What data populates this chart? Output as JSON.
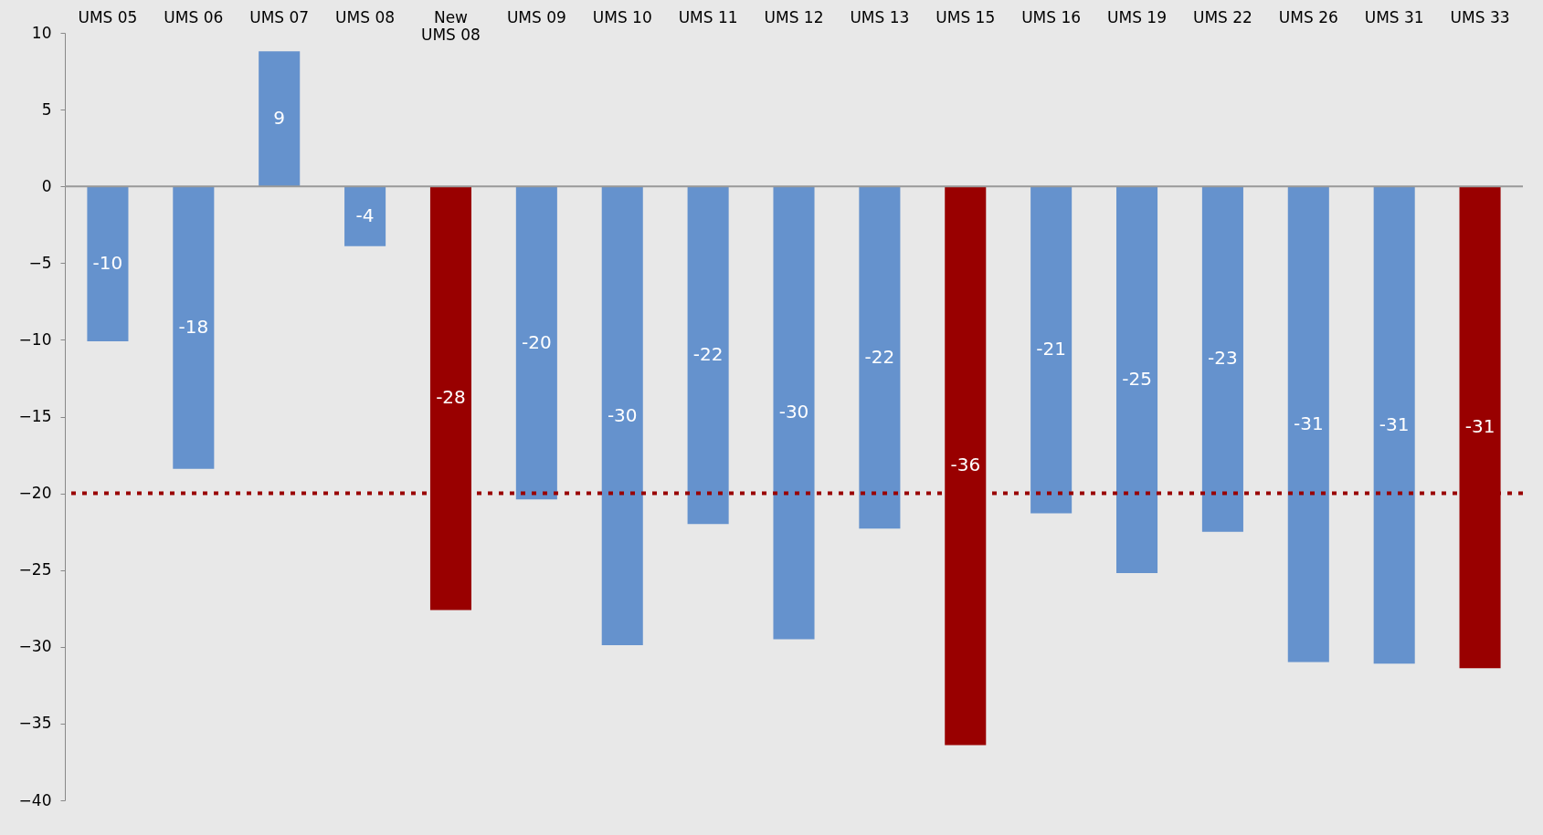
{
  "chart_data": {
    "type": "bar",
    "categories": [
      "UMS 05",
      "UMS 06",
      "UMS 07",
      "UMS 08",
      "New\nUMS 08",
      "UMS 09",
      "UMS 10",
      "UMS 11",
      "UMS 12",
      "UMS 13",
      "UMS 15",
      "UMS 16",
      "UMS 19",
      "UMS 22",
      "UMS 26",
      "UMS 31",
      "UMS 33"
    ],
    "values": [
      -10.1,
      -18.4,
      8.8,
      -3.9,
      -27.6,
      -20.4,
      -29.9,
      -22.0,
      -29.5,
      -22.3,
      -36.4,
      -21.3,
      -25.2,
      -22.5,
      -31.0,
      -31.1,
      -31.4
    ],
    "value_labels": [
      "-10",
      "-18",
      "9",
      "-4",
      "-28",
      "-20",
      "-30",
      "-22",
      "-30",
      "-22",
      "-36",
      "-21",
      "-25",
      "-23",
      "-31",
      "-31",
      "-31"
    ],
    "colors": [
      "#6592cd",
      "#6592cd",
      "#6592cd",
      "#6592cd",
      "#990000",
      "#6592cd",
      "#6592cd",
      "#6592cd",
      "#6592cd",
      "#6592cd",
      "#990000",
      "#6592cd",
      "#6592cd",
      "#6592cd",
      "#6592cd",
      "#6592cd",
      "#990000"
    ],
    "ylim": [
      -40,
      10
    ],
    "yticks": [
      -40,
      -35,
      -30,
      -25,
      -20,
      -15,
      -10,
      -5,
      0,
      5,
      10
    ],
    "ref_lines": [
      {
        "axis": "y",
        "value": -20,
        "color": "#990000",
        "line_style": "dashed"
      }
    ],
    "grid": false
  }
}
